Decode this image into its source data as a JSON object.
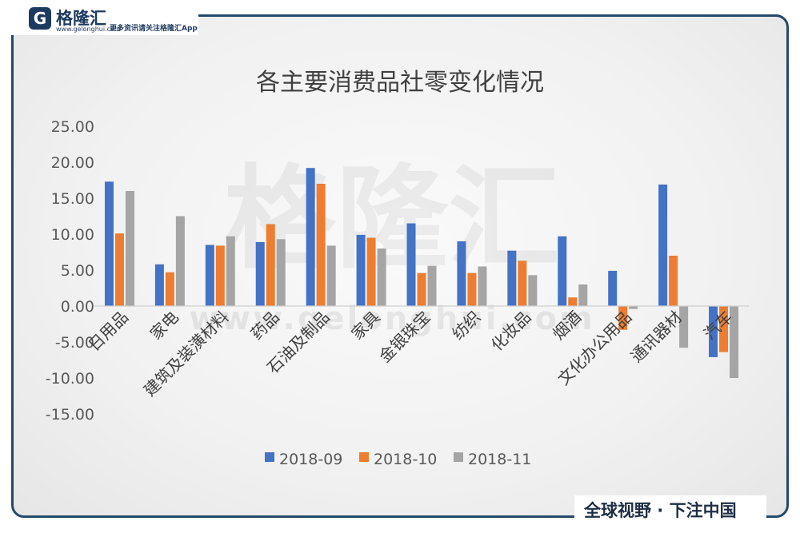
{
  "branding": {
    "logo_glyph": "G",
    "logo_name": "格隆汇",
    "logo_domain": "www.gelonghui.com",
    "slogan": "更多资讯请关注格隆汇App",
    "footer": "全球视野 · 下注中国",
    "watermark_cn": "格隆汇",
    "watermark_url": "www.gelonghui.com",
    "frame_color": "#24496a"
  },
  "chart_data": {
    "type": "bar",
    "title": "各主要消费品社零变化情况",
    "categories": [
      "日用品",
      "家电",
      "建筑及装潢材料",
      "药品",
      "石油及制品",
      "家具",
      "金银珠宝",
      "纺织",
      "化妆品",
      "烟酒",
      "文化办公用品",
      "通讯器材",
      "汽车"
    ],
    "series": [
      {
        "name": "2018-09",
        "color": "#4472c4",
        "values": [
          17.3,
          5.8,
          8.5,
          8.9,
          19.2,
          9.9,
          11.5,
          9.0,
          7.7,
          9.7,
          4.9,
          16.9,
          -7.1
        ]
      },
      {
        "name": "2018-10",
        "color": "#ed7d31",
        "values": [
          10.1,
          4.7,
          8.4,
          11.4,
          17.0,
          9.5,
          4.6,
          4.6,
          6.3,
          1.2,
          -3.3,
          7.0,
          -6.4
        ]
      },
      {
        "name": "2018-11",
        "color": "#a5a5a5",
        "values": [
          16.0,
          12.5,
          9.7,
          9.3,
          8.4,
          8.0,
          5.6,
          5.5,
          4.3,
          3.0,
          -0.4,
          -5.8,
          -10.0
        ]
      }
    ],
    "y_ticks": [
      "25.00",
      "20.00",
      "15.00",
      "10.00",
      "5.00",
      "0.00",
      "-5.00",
      "-10.00",
      "-15.00"
    ],
    "ylim": [
      -15,
      25
    ],
    "grid": false,
    "legend_position": "bottom"
  }
}
